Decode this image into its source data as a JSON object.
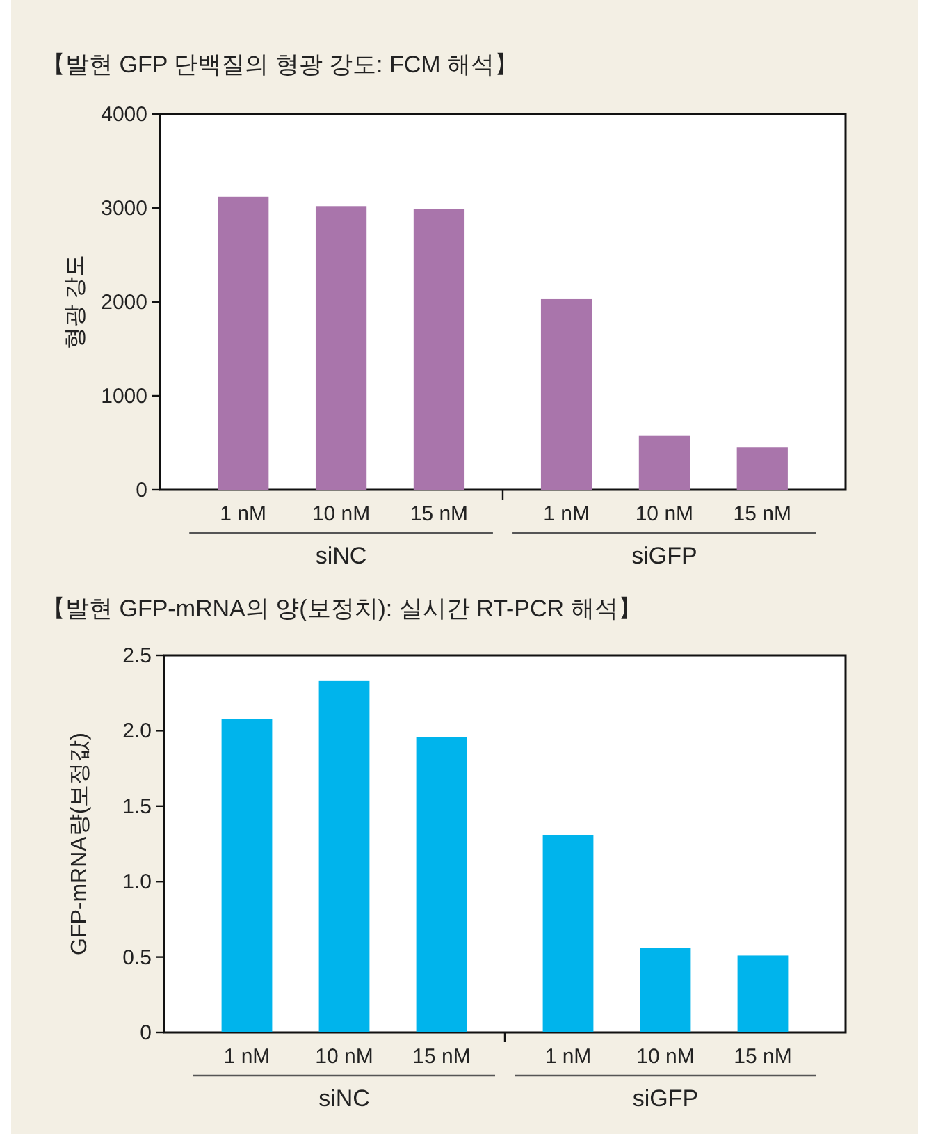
{
  "chart_data": [
    {
      "type": "bar",
      "title": "【발현 GFP 단백질의 형광 강도: FCM 해석】",
      "ylabel": "형광 강도",
      "categories": [
        "1 nM",
        "10 nM",
        "15 nM",
        "1 nM",
        "10 nM",
        "15 nM"
      ],
      "values": [
        3120,
        3020,
        2990,
        2030,
        580,
        450
      ],
      "color": "#a975ab",
      "ylim": [
        0,
        4000
      ],
      "yticks": [
        0,
        1000,
        2000,
        3000,
        4000
      ],
      "grid": false,
      "annotations": [
        "siNC",
        "siGFP"
      ]
    },
    {
      "type": "bar",
      "title": "【발현 GFP-mRNA의 양(보정치): 실시간 RT-PCR 해석】",
      "ylabel": "GFP-mRNA량(보정값)",
      "categories": [
        "1 nM",
        "10 nM",
        "15 nM",
        "1 nM",
        "10 nM",
        "15 nM"
      ],
      "values": [
        2.08,
        2.33,
        1.96,
        1.31,
        0.56,
        0.51
      ],
      "color": "#00b4ec",
      "ylim": [
        0,
        2.5
      ],
      "yticks": [
        0,
        {
          "value": 0.5,
          "label": "0.5"
        },
        {
          "value": 1,
          "label": "1.0"
        },
        1.5,
        {
          "value": 2,
          "label": "2.0"
        },
        2.5
      ],
      "grid": false,
      "annotations": [
        "siNC",
        "siGFP"
      ]
    }
  ]
}
